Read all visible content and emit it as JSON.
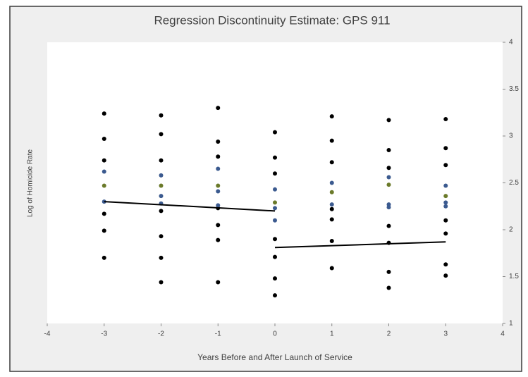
{
  "chart_data": {
    "type": "scatter",
    "title": "Regression Discontinuity Estimate: GPS 911",
    "x_label": "Years Before and After Launch of Service",
    "y_label": "Log of Homicide Rate",
    "xlim": [
      -4,
      4
    ],
    "xticks": [
      -4,
      -3,
      -2,
      -1,
      0,
      1,
      2,
      3,
      4
    ],
    "ylim": [
      1,
      4
    ],
    "yticks": [
      1,
      1.5,
      2,
      2.5,
      3,
      3.5,
      4
    ],
    "y_axis_side": "right",
    "grid": false,
    "series": [
      {
        "color": "#000000",
        "x": [
          -3,
          -3,
          -3,
          -3,
          -3,
          -3,
          -2,
          -2,
          -2,
          -2,
          -2,
          -2,
          -2,
          -1,
          -1,
          -1,
          -1,
          -1,
          -1,
          -1,
          0,
          0,
          0,
          0,
          0,
          0,
          0,
          1,
          1,
          1,
          1,
          1,
          1,
          1,
          2,
          2,
          2,
          2,
          2,
          2,
          2,
          3,
          3,
          3,
          3,
          3,
          3,
          3
        ],
        "values": [
          3.24,
          2.97,
          2.74,
          2.17,
          1.99,
          1.7,
          3.22,
          3.02,
          2.74,
          2.2,
          1.93,
          1.7,
          1.44,
          3.3,
          2.94,
          2.78,
          2.23,
          2.05,
          1.89,
          1.44,
          3.04,
          2.77,
          2.6,
          1.9,
          1.71,
          1.48,
          1.3,
          3.21,
          2.95,
          2.72,
          2.22,
          2.11,
          1.88,
          1.59,
          3.17,
          2.85,
          2.66,
          2.04,
          1.86,
          1.55,
          1.38,
          3.18,
          2.87,
          2.69,
          2.1,
          1.96,
          1.63,
          1.51
        ]
      },
      {
        "color": "#3b5a8f",
        "x": [
          -3,
          -3,
          -2,
          -2,
          -2,
          -1,
          -1,
          -1,
          0,
          0,
          0,
          1,
          1,
          2,
          2,
          2,
          3,
          3,
          3
        ],
        "values": [
          2.62,
          2.3,
          2.58,
          2.36,
          2.28,
          2.65,
          2.41,
          2.26,
          2.43,
          2.23,
          2.1,
          2.5,
          2.27,
          2.56,
          2.27,
          2.24,
          2.47,
          2.29,
          2.25
        ]
      },
      {
        "color": "#6b7a2a",
        "x": [
          -3,
          -2,
          -1,
          0,
          1,
          2,
          3
        ],
        "values": [
          2.47,
          2.47,
          2.47,
          2.29,
          2.4,
          2.48,
          2.36
        ]
      }
    ],
    "lines": [
      {
        "color": "#000000",
        "x": [
          -3,
          0
        ],
        "values": [
          2.3,
          2.2
        ]
      },
      {
        "color": "#000000",
        "x": [
          0,
          3
        ],
        "values": [
          1.81,
          1.87
        ]
      }
    ]
  }
}
